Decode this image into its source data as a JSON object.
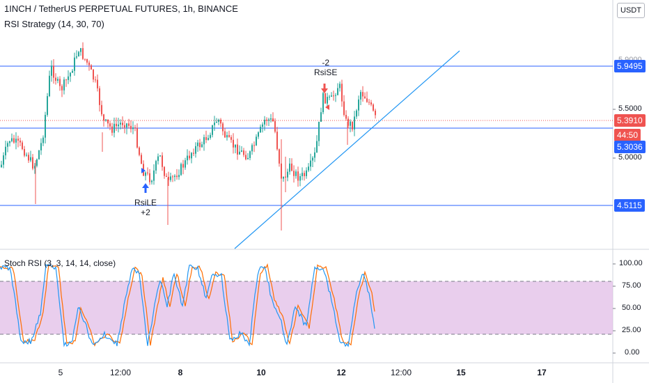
{
  "header": {
    "title": "1INCH / TetherUS PERPETUAL FUTURES, 1h, BINANCE",
    "strategy": "RSI Strategy (14, 30, 70)",
    "currency_button": "USDT"
  },
  "price_axis": {
    "partial_top_label": "5.9000",
    "ticks": [
      "5.5000",
      "5.0000"
    ]
  },
  "price_tags": [
    {
      "label": "5.9495",
      "color": "#2962ff"
    },
    {
      "label": "5.3910",
      "color": "#ef5350"
    },
    {
      "label": "44:50",
      "color": "#ef5350"
    },
    {
      "label": "5.3036",
      "color": "#2962ff"
    },
    {
      "label": "4.5115",
      "color": "#2962ff"
    }
  ],
  "trades": [
    {
      "name": "RsiLE",
      "qty": "+2",
      "direction": "long",
      "color": "#2962ff"
    },
    {
      "name": "RsiSE",
      "qty": "-2",
      "direction": "short",
      "color": "#ef5350"
    }
  ],
  "indicator": {
    "title": "Stoch RSI (3, 3, 14, 14, close)",
    "ticks": [
      "100.00",
      "75.00",
      "50.00",
      "25.00",
      "0.00"
    ],
    "k_color": "#2196f3",
    "d_color": "#ff6d00",
    "band_color": "#e1bee7"
  },
  "time_axis": {
    "labels": [
      "5",
      "12:00",
      "8",
      "10",
      "12",
      "12:00",
      "15",
      "17"
    ]
  },
  "colors": {
    "up": "#26a69a",
    "down": "#ef5350",
    "hline": "#2962ff"
  }
}
